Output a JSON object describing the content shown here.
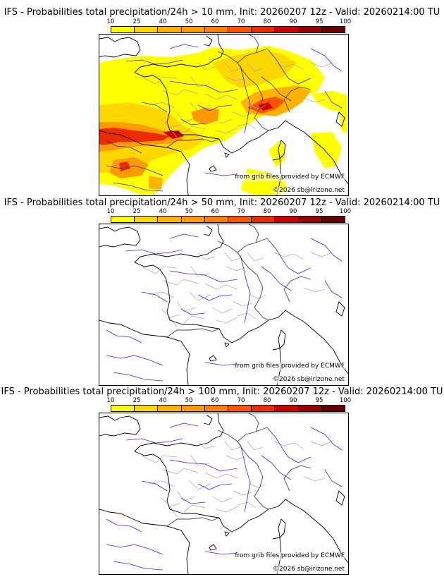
{
  "palette": [
    "#ffff00",
    "#ffd700",
    "#ffb300",
    "#ff9a00",
    "#ff7f00",
    "#ff5500",
    "#ee2a00",
    "#cc0000",
    "#990000",
    "#660000"
  ],
  "colorbar_ticks": [
    "10",
    "25",
    "40",
    "50",
    "60",
    "70",
    "80",
    "90",
    "95",
    "100"
  ],
  "panels": [
    {
      "title": "IFS - Probabilities total precipitation/24h > 10 mm, Init: 20260207 12z - Valid: 20260214:00 TU",
      "source": "from grib files provided by ECMWF",
      "copyright": "©2026 sb@irizone.net",
      "probability_field": "high"
    },
    {
      "title": "IFS - Probabilities total precipitation/24h > 50 mm, Init: 20260207 12z - Valid: 20260214:00 TU",
      "source": "from grib files provided by ECMWF",
      "copyright": "©2026 sb@irizone.net",
      "probability_field": "none"
    },
    {
      "title": "IFS - Probabilities total precipitation/24h > 100 mm, Init: 20260207 12z - Valid: 20260214:00 TU",
      "source": "from grib files provided by ECMWF",
      "copyright": "©2026 sb@irizone.net",
      "probability_field": "none"
    }
  ]
}
